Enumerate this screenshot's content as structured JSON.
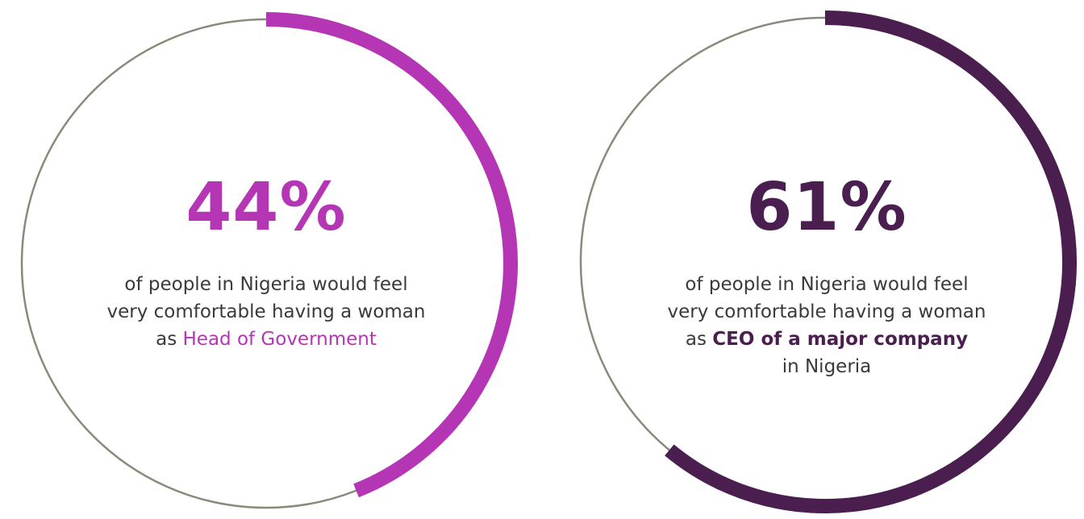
{
  "chart_data": [
    {
      "type": "pie",
      "value": 44,
      "value_label": "44%",
      "description_lines": [
        "of people in Nigeria would feel",
        "very comfortable having a woman"
      ],
      "description_prefix": "as ",
      "description_emphasis": "Head of Government",
      "description_suffix_line": "",
      "arc_color": "#b536b5",
      "ring_color": "#8a8a7a"
    },
    {
      "type": "pie",
      "value": 61,
      "value_label": "61%",
      "description_lines": [
        "of people in Nigeria would feel",
        "very comfortable having a woman"
      ],
      "description_prefix": "as ",
      "description_emphasis": "CEO of a major company",
      "description_suffix_line": "in Nigeria",
      "arc_color": "#4a1e4f",
      "ring_color": "#8a8a7a"
    }
  ]
}
